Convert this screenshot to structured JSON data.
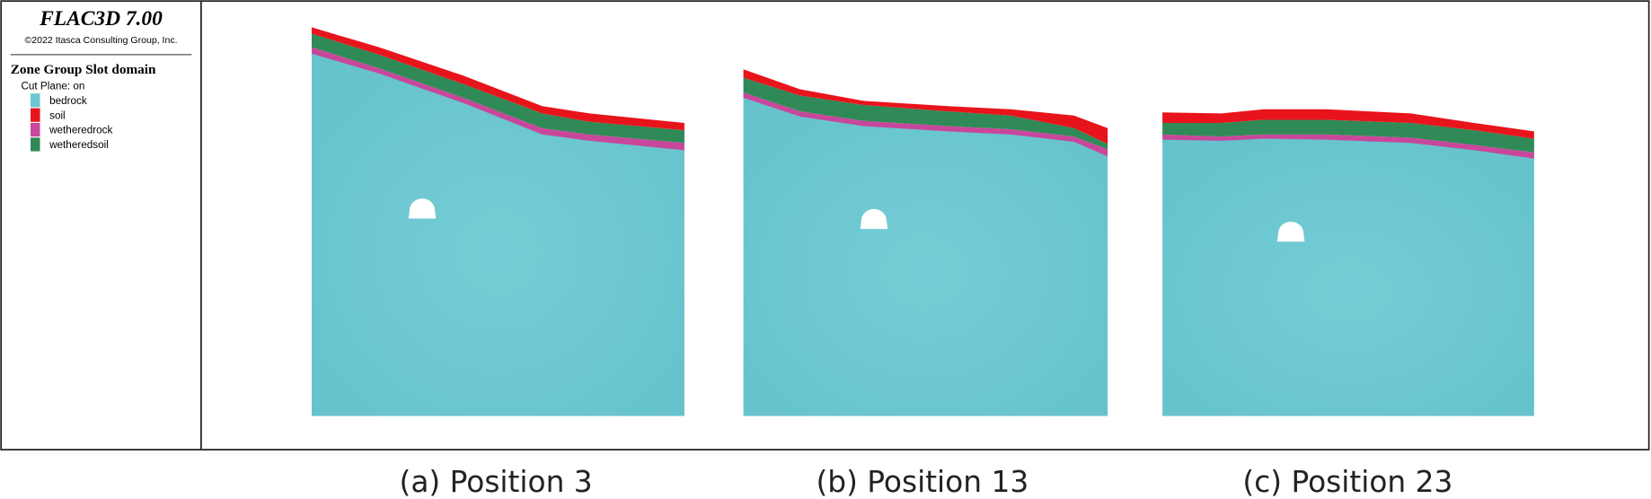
{
  "header": {
    "title": "FLAC3D 7.00",
    "copyright": "©2022 Itasca Consulting Group, Inc."
  },
  "legend": {
    "title": "Zone Group Slot domain",
    "subtitle": "Cut Plane: on",
    "items": [
      {
        "label": "bedrock",
        "color": "#6cc7d1"
      },
      {
        "label": "soil",
        "color": "#e8141c"
      },
      {
        "label": "wetheredrock",
        "color": "#c8479b"
      },
      {
        "label": "wetheredsoil",
        "color": "#2f8a57"
      }
    ]
  },
  "panels": [
    {
      "caption": "(a) Position 3"
    },
    {
      "caption": "(b) Position 13"
    },
    {
      "caption": "(c) Position 23"
    }
  ]
}
